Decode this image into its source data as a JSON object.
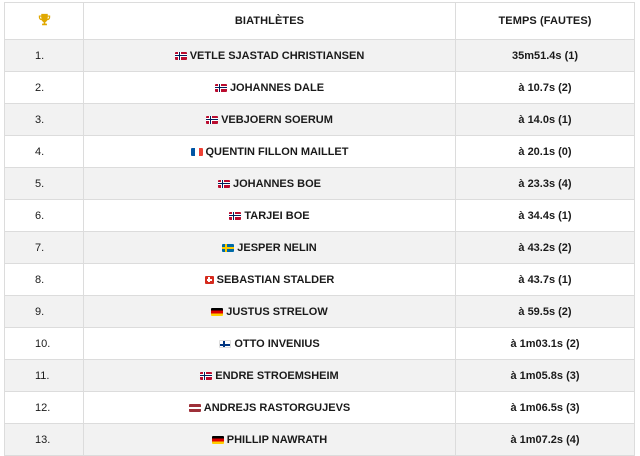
{
  "header": {
    "trophy_icon": "trophy-icon",
    "athletes_label": "BIATHLÈTES",
    "time_label": "TEMPS (FAUTES)"
  },
  "colors": {
    "trophy": "#e0a800",
    "row_alt": "#f2f2f2",
    "border": "#dcdcdc"
  },
  "rows": [
    {
      "rank": "1.",
      "flag": "nor",
      "name": "VETLE SJASTAD CHRISTIANSEN",
      "time": "35m51.4s (1)"
    },
    {
      "rank": "2.",
      "flag": "nor",
      "name": "JOHANNES DALE",
      "time": "à 10.7s (2)"
    },
    {
      "rank": "3.",
      "flag": "nor",
      "name": "VEBJOERN SOERUM",
      "time": "à 14.0s (1)"
    },
    {
      "rank": "4.",
      "flag": "fra",
      "name": "QUENTIN FILLON MAILLET",
      "time": "à 20.1s (0)"
    },
    {
      "rank": "5.",
      "flag": "nor",
      "name": "JOHANNES BOE",
      "time": "à 23.3s (4)"
    },
    {
      "rank": "6.",
      "flag": "nor",
      "name": "TARJEI BOE",
      "time": "à 34.4s (1)"
    },
    {
      "rank": "7.",
      "flag": "swe",
      "name": "JESPER NELIN",
      "time": "à 43.2s (2)"
    },
    {
      "rank": "8.",
      "flag": "sui",
      "name": "SEBASTIAN STALDER",
      "time": "à 43.7s (1)"
    },
    {
      "rank": "9.",
      "flag": "ger",
      "name": "JUSTUS STRELOW",
      "time": "à 59.5s (2)"
    },
    {
      "rank": "10.",
      "flag": "fin",
      "name": "OTTO INVENIUS",
      "time": "à 1m03.1s (2)"
    },
    {
      "rank": "11.",
      "flag": "nor",
      "name": "ENDRE STROEMSHEIM",
      "time": "à 1m05.8s (3)"
    },
    {
      "rank": "12.",
      "flag": "lat",
      "name": "ANDREJS RASTORGUJEVS",
      "time": "à 1m06.5s (3)"
    },
    {
      "rank": "13.",
      "flag": "ger",
      "name": "PHILLIP NAWRATH",
      "time": "à 1m07.2s (4)"
    }
  ]
}
